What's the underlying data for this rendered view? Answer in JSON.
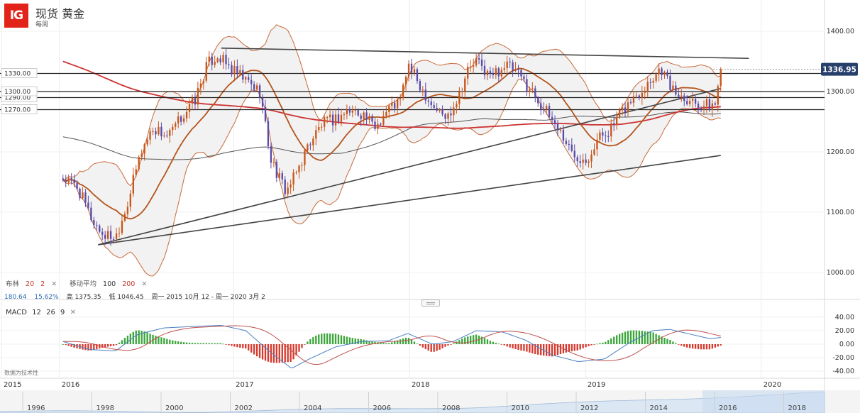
{
  "header": {
    "logo_text": "IG",
    "instrument": "现货 黄金",
    "interval": "每周"
  },
  "indicators": {
    "bollinger": {
      "name": "布林",
      "period": "20",
      "stddev": "2",
      "remove": "✕"
    },
    "moving_average": {
      "name": "移动平均",
      "period_1": "100",
      "period_2": "200",
      "remove": "✕"
    }
  },
  "stats": {
    "val1": "180.64",
    "val2": "15.62%",
    "high": "高 1375.35",
    "low": "低 1046.45",
    "range": "周一 2015 10月 12 - 周一 2020 3月 2"
  },
  "macd": {
    "name": "MACD",
    "fast": "12",
    "slow": "26",
    "signal": "9",
    "remove": "✕"
  },
  "tech_note": "数据为技术性",
  "colors": {
    "up": "#c8561a",
    "down": "#5b4aa8",
    "ma_red": "#cc3333",
    "ma_black": "#555555",
    "bb_mid": "#b5541c",
    "bb_band": "#c86a3a",
    "price_tag": "#27406b",
    "macd_pos": "#3ca63c",
    "macd_neg": "#d63a2f",
    "macd_line": "#4a7fc1",
    "signal_line": "#c0504d"
  },
  "chart_data": [
    {
      "type": "candlestick",
      "title": "现货 黄金",
      "y_ticks": [
        "1000.00",
        "1100.00",
        "1200.00",
        "1300.00",
        "1400.00"
      ],
      "ylim": [
        950,
        1440
      ],
      "x_tick_labels": [
        "2015",
        "2016",
        "2017",
        "2018",
        "2019",
        "2020"
      ],
      "horizontal_levels": [
        "1270.00",
        "1290.00",
        "1300.00",
        "1330.00"
      ],
      "last_price": "1336.95",
      "high": 1375.35,
      "low": 1046.45,
      "moving_averages": [
        100,
        200
      ],
      "bollinger": {
        "period": 20,
        "stddev": 2
      },
      "close_path": [
        [
          2015.7,
          1156
        ],
        [
          2015.78,
          1142
        ],
        [
          2015.87,
          1085
        ],
        [
          2015.93,
          1062
        ],
        [
          2016.0,
          1060
        ],
        [
          2016.07,
          1118
        ],
        [
          2016.14,
          1198
        ],
        [
          2016.21,
          1240
        ],
        [
          2016.3,
          1225
        ],
        [
          2016.38,
          1260
        ],
        [
          2016.45,
          1285
        ],
        [
          2016.52,
          1345
        ],
        [
          2016.58,
          1360
        ],
        [
          2016.66,
          1335
        ],
        [
          2016.73,
          1320
        ],
        [
          2016.82,
          1300
        ],
        [
          2016.88,
          1190
        ],
        [
          2016.93,
          1155
        ],
        [
          2016.97,
          1135
        ],
        [
          2017.02,
          1160
        ],
        [
          2017.1,
          1215
        ],
        [
          2017.17,
          1245
        ],
        [
          2017.25,
          1255
        ],
        [
          2017.32,
          1268
        ],
        [
          2017.4,
          1265
        ],
        [
          2017.47,
          1240
        ],
        [
          2017.55,
          1272
        ],
        [
          2017.62,
          1285
        ],
        [
          2017.66,
          1345
        ],
        [
          2017.72,
          1315
        ],
        [
          2017.8,
          1278
        ],
        [
          2017.88,
          1255
        ],
        [
          2017.95,
          1295
        ],
        [
          2018.0,
          1335
        ],
        [
          2018.05,
          1350
        ],
        [
          2018.13,
          1325
        ],
        [
          2018.22,
          1345
        ],
        [
          2018.28,
          1330
        ],
        [
          2018.37,
          1300
        ],
        [
          2018.45,
          1265
        ],
        [
          2018.52,
          1238
        ],
        [
          2018.6,
          1195
        ],
        [
          2018.68,
          1190
        ],
        [
          2018.75,
          1225
        ],
        [
          2018.82,
          1240
        ],
        [
          2018.9,
          1275
        ],
        [
          2018.98,
          1300
        ],
        [
          2019.04,
          1320
        ],
        [
          2019.1,
          1340
        ],
        [
          2019.17,
          1300
        ],
        [
          2019.25,
          1290
        ],
        [
          2019.32,
          1280
        ],
        [
          2019.37,
          1276
        ],
        [
          2019.41,
          1280
        ],
        [
          2019.44,
          1336.95
        ]
      ]
    },
    {
      "type": "bar",
      "title": "MACD 12 26 9",
      "y_ticks": [
        "40.00",
        "20.00",
        "0.00",
        "-20.00",
        "-40.00"
      ],
      "ylim": [
        -48,
        48
      ],
      "macd_path": [
        [
          2015.7,
          4
        ],
        [
          2015.85,
          -8
        ],
        [
          2016.0,
          -10
        ],
        [
          2016.12,
          14
        ],
        [
          2016.27,
          24
        ],
        [
          2016.42,
          26
        ],
        [
          2016.6,
          28
        ],
        [
          2016.74,
          20
        ],
        [
          2016.88,
          -12
        ],
        [
          2017.0,
          -36
        ],
        [
          2017.1,
          -22
        ],
        [
          2017.25,
          -4
        ],
        [
          2017.4,
          4
        ],
        [
          2017.55,
          5
        ],
        [
          2017.66,
          16
        ],
        [
          2017.8,
          0
        ],
        [
          2017.92,
          4
        ],
        [
          2018.05,
          20
        ],
        [
          2018.2,
          18
        ],
        [
          2018.33,
          6
        ],
        [
          2018.48,
          -16
        ],
        [
          2018.63,
          -26
        ],
        [
          2018.78,
          -22
        ],
        [
          2018.92,
          2
        ],
        [
          2019.05,
          20
        ],
        [
          2019.15,
          22
        ],
        [
          2019.28,
          14
        ],
        [
          2019.38,
          8
        ],
        [
          2019.44,
          10
        ]
      ]
    }
  ],
  "navigator": {
    "years": [
      "1996",
      "1998",
      "2000",
      "2002",
      "2004",
      "2006",
      "2008",
      "2010",
      "2012",
      "2014",
      "2016",
      "2018"
    ]
  }
}
